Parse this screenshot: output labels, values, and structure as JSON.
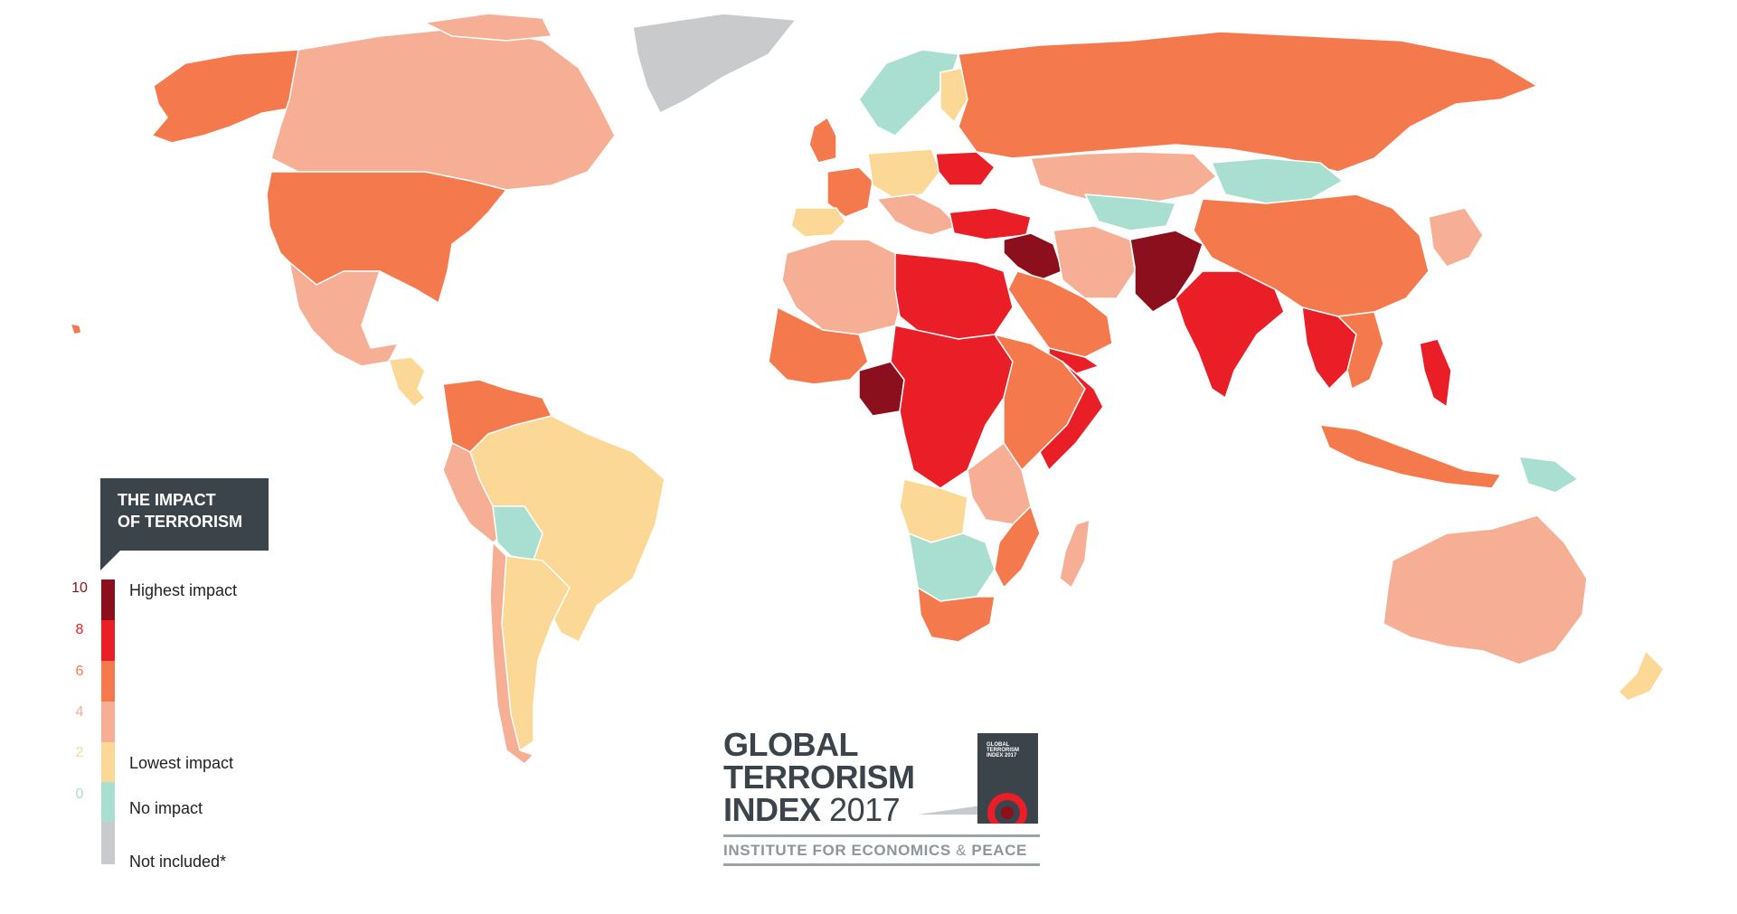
{
  "colors": {
    "highest": "#8b0f1c",
    "high": "#e91e26",
    "medium": "#f47a4d",
    "low": "#f6ae94",
    "lowest": "#fcd897",
    "none": "#a9dfd0",
    "not_included": "#c9cacb",
    "dark": "#3b434b"
  },
  "legend": {
    "title_line1": "THE IMPACT",
    "title_line2": "OF TERRORISM",
    "ticks": [
      "10",
      "8",
      "6",
      "4",
      "2",
      "0"
    ],
    "labels": {
      "highest": "Highest impact",
      "lowest": "Lowest impact",
      "none": "No impact",
      "not_included": "Not included*"
    }
  },
  "logo": {
    "line1": "GLOBAL",
    "line2": "TERRORISM",
    "line3": "INDEX",
    "year": "2017",
    "institute_a": "INSTITUTE FOR ECONOMICS",
    "ampersand": "&",
    "institute_b": "PEACE",
    "cover_text": "GLOBAL TERRORISM INDEX 2017"
  }
}
